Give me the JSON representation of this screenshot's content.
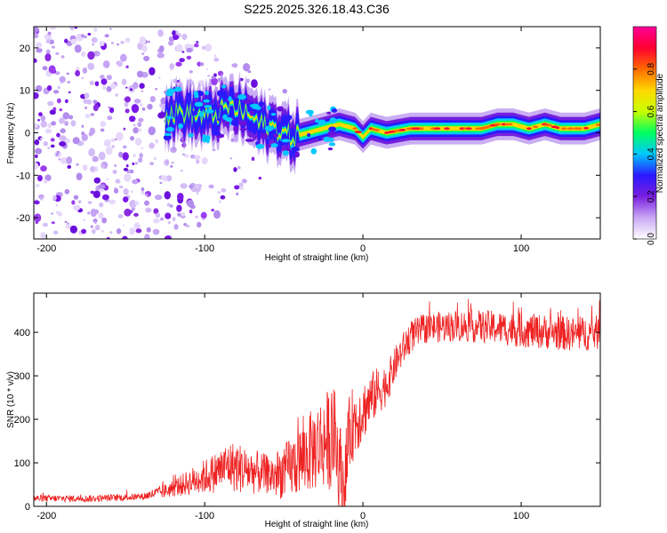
{
  "title": "S225.2025.326.18.43.C36",
  "chart_data": [
    {
      "type": "heatmap",
      "name": "spectrogram",
      "xlabel": "Height of straight line (km)",
      "ylabel": "Frequency (Hz)",
      "xlim": [
        -208,
        150
      ],
      "ylim": [
        -25,
        25
      ],
      "xticks": [
        -200,
        -100,
        0,
        100
      ],
      "yticks": [
        -20,
        -10,
        0,
        10,
        20
      ],
      "colorbar": {
        "label": "Normalized spectral amplitude",
        "range": [
          0,
          1
        ],
        "ticks": [
          "0.0",
          "0.2",
          "0.4",
          "0.6",
          "0.8"
        ],
        "tick_values": [
          0.0,
          0.2,
          0.4,
          0.6,
          0.8
        ],
        "colors": [
          "#ffffff",
          "#c9a8f5",
          "#7a1ee0",
          "#2a1aff",
          "#00c8ff",
          "#00ff60",
          "#c8ff00",
          "#ffd800",
          "#ff6a00",
          "#ff0030",
          "#ff0099"
        ]
      },
      "ridge": {
        "points": [
          [
            -125,
            4
          ],
          [
            -115,
            5
          ],
          [
            -105,
            4
          ],
          [
            -95,
            4
          ],
          [
            -85,
            6
          ],
          [
            -75,
            5
          ],
          [
            -65,
            2
          ],
          [
            -55,
            1
          ],
          [
            -45,
            -1
          ],
          [
            -35,
            0
          ],
          [
            -25,
            1
          ],
          [
            -15,
            2
          ],
          [
            -5,
            1
          ],
          [
            0,
            -1
          ],
          [
            5,
            1
          ],
          [
            15,
            0
          ],
          [
            30,
            1
          ],
          [
            45,
            1
          ],
          [
            60,
            1
          ],
          [
            75,
            1
          ],
          [
            85,
            2
          ],
          [
            95,
            2
          ],
          [
            105,
            1
          ],
          [
            115,
            2
          ],
          [
            125,
            1
          ],
          [
            140,
            1
          ],
          [
            150,
            2
          ]
        ]
      }
    },
    {
      "type": "line",
      "name": "snr",
      "xlabel": "Height of straight line (km)",
      "ylabel": "SNR (10 * v/v)",
      "xlim": [
        -208,
        150
      ],
      "ylim": [
        0,
        490
      ],
      "xticks": [
        -200,
        -100,
        0,
        100
      ],
      "yticks": [
        0,
        100,
        200,
        300,
        400
      ],
      "color": "#ee2222",
      "trend": [
        [
          -208,
          18
        ],
        [
          -170,
          18
        ],
        [
          -140,
          22
        ],
        [
          -125,
          35
        ],
        [
          -110,
          55
        ],
        [
          -95,
          75
        ],
        [
          -85,
          95
        ],
        [
          -70,
          80
        ],
        [
          -55,
          70
        ],
        [
          -45,
          90
        ],
        [
          -35,
          120
        ],
        [
          -25,
          150
        ],
        [
          -18,
          160
        ],
        [
          -12,
          40
        ],
        [
          -8,
          180
        ],
        [
          0,
          220
        ],
        [
          8,
          260
        ],
        [
          15,
          280
        ],
        [
          22,
          340
        ],
        [
          30,
          390
        ],
        [
          40,
          410
        ],
        [
          60,
          415
        ],
        [
          80,
          412
        ],
        [
          100,
          405
        ],
        [
          120,
          400
        ],
        [
          135,
          395
        ],
        [
          150,
          400
        ]
      ],
      "noise": [
        [
          -208,
          8
        ],
        [
          -140,
          8
        ],
        [
          -120,
          20
        ],
        [
          -100,
          40
        ],
        [
          -80,
          60
        ],
        [
          -60,
          45
        ],
        [
          -40,
          80
        ],
        [
          -20,
          120
        ],
        [
          0,
          70
        ],
        [
          20,
          40
        ],
        [
          40,
          35
        ],
        [
          100,
          40
        ],
        [
          150,
          40
        ]
      ]
    }
  ]
}
